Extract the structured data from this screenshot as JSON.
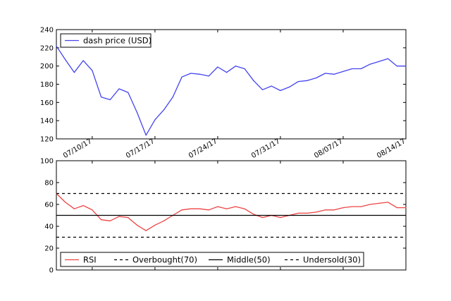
{
  "chart_data": [
    {
      "type": "line",
      "title": "",
      "xlabel": "",
      "ylabel": "",
      "ylim": [
        120,
        240
      ],
      "yticks": [
        120,
        140,
        160,
        180,
        200,
        220,
        240
      ],
      "xticks": [
        {
          "day": 10,
          "label": "07/10/17"
        },
        {
          "day": 17,
          "label": "07/17/17"
        },
        {
          "day": 24,
          "label": "07/24/17"
        },
        {
          "day": 31,
          "label": "07/31/17"
        },
        {
          "day": 38,
          "label": "08/07/17"
        },
        {
          "day": 45,
          "label": "08/14/17"
        }
      ],
      "grid": false,
      "legend": "top-left",
      "series": [
        {
          "name": "dash price (USD)",
          "color": "#4444ee",
          "x": [
            6,
            7,
            8,
            9,
            10,
            11,
            12,
            13,
            14,
            15,
            16,
            17,
            18,
            19,
            20,
            21,
            22,
            23,
            24,
            25,
            26,
            27,
            28,
            29,
            30,
            31,
            32,
            33,
            34,
            35,
            36,
            37,
            38,
            39,
            40,
            41,
            42,
            43,
            44,
            45
          ],
          "values": [
            222,
            207,
            193,
            206,
            195,
            166,
            163,
            175,
            171,
            149,
            124,
            141,
            152,
            166,
            188,
            192,
            191,
            189,
            199,
            193,
            200,
            197,
            184,
            174,
            178,
            173,
            177,
            183,
            184,
            187,
            192,
            191,
            194,
            197,
            197,
            202,
            205,
            208,
            200,
            200
          ]
        }
      ]
    },
    {
      "type": "line",
      "title": "",
      "xlabel": "",
      "ylabel": "",
      "ylim": [
        0,
        100
      ],
      "yticks": [
        0,
        20,
        40,
        60,
        80,
        100
      ],
      "grid": false,
      "legend": "bottom",
      "series": [
        {
          "name": "RSI",
          "color": "#ee4444",
          "style": "solid",
          "x": [
            6,
            7,
            8,
            9,
            10,
            11,
            12,
            13,
            14,
            15,
            16,
            17,
            18,
            19,
            20,
            21,
            22,
            23,
            24,
            25,
            26,
            27,
            28,
            29,
            30,
            31,
            32,
            33,
            34,
            35,
            36,
            37,
            38,
            39,
            40,
            41,
            42,
            43,
            44,
            45
          ],
          "values": [
            70,
            62,
            56,
            59,
            55,
            46,
            45,
            49,
            48,
            41,
            36,
            41,
            45,
            50,
            55,
            56,
            56,
            55,
            58,
            56,
            58,
            56,
            51,
            48,
            50,
            48,
            50,
            52,
            52,
            53,
            55,
            55,
            57,
            58,
            58,
            60,
            61,
            62,
            57,
            57
          ]
        },
        {
          "name": "Overbought(70)",
          "color": "#000000",
          "style": "dashed",
          "constant": 70
        },
        {
          "name": "Middle(50)",
          "color": "#000000",
          "style": "solid",
          "constant": 50
        },
        {
          "name": "Undersold(30)",
          "color": "#000000",
          "style": "dashed",
          "constant": 30
        }
      ]
    }
  ]
}
